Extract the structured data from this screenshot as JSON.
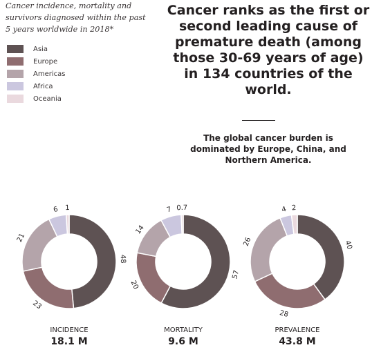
{
  "subtitle": "Cancer incidence, mortality and survivors diagnosed within the past 5 years worldwide in 2018*",
  "headline": "Cancer ranks as the first or second leading cause of premature death (among those 30-69 years of age) in 134 countries of the world.",
  "note": "The global cancer burden is dominated by Europe, China, and Northern America.",
  "legend": [
    {
      "label": "Asia",
      "color": "#5e5253"
    },
    {
      "label": "Europe",
      "color": "#8f6d70"
    },
    {
      "label": "Americas",
      "color": "#b4a4aa"
    },
    {
      "label": "Africa",
      "color": "#cbc7df"
    },
    {
      "label": "Oceania",
      "color": "#ead9de"
    }
  ],
  "chart_data": [
    {
      "type": "pie",
      "title": "INCIDENCE",
      "total": "18.1 M",
      "categories": [
        "Asia",
        "Europe",
        "Americas",
        "Africa",
        "Oceania"
      ],
      "values": [
        48,
        23,
        21,
        6,
        1
      ],
      "labels": [
        "48",
        "23",
        "21",
        "6",
        "1"
      ]
    },
    {
      "type": "pie",
      "title": "MORTALITY",
      "total": "9.6 M",
      "categories": [
        "Asia",
        "Europe",
        "Americas",
        "Africa",
        "Oceania"
      ],
      "values": [
        57,
        20,
        14,
        7,
        0.7
      ],
      "labels": [
        "57",
        "20",
        "14",
        "7",
        "0.7"
      ]
    },
    {
      "type": "pie",
      "title": "PREVALENCE",
      "total": "43.8 M",
      "categories": [
        "Asia",
        "Europe",
        "Americas",
        "Africa",
        "Oceania"
      ],
      "values": [
        40,
        28,
        26,
        4,
        2
      ],
      "labels": [
        "40",
        "28",
        "26",
        "4",
        "2"
      ]
    }
  ]
}
